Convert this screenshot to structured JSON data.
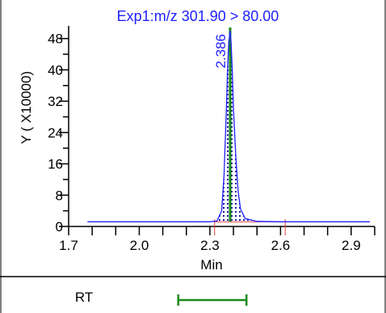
{
  "chart_data": {
    "type": "line",
    "title": "Exp1:m/z 301.90 > 80.00",
    "xlabel": "Min",
    "ylabel": "Y ( X10000)",
    "xlim": [
      1.7,
      3.0
    ],
    "ylim": [
      0,
      50
    ],
    "x_ticks": [
      "1.7",
      "2.0",
      "2.3",
      "2.6",
      "2.9"
    ],
    "y_ticks": [
      "0",
      "8",
      "16",
      "24",
      "32",
      "40",
      "48"
    ],
    "grid": false,
    "legend": "none",
    "series": [
      {
        "color": "#2020ff",
        "x": [
          1.78,
          2.2,
          2.3,
          2.33,
          2.35,
          2.36,
          2.37,
          2.375,
          2.38,
          2.386,
          2.39,
          2.395,
          2.4,
          2.41,
          2.42,
          2.43,
          2.45,
          2.5,
          2.6,
          2.98
        ],
        "y": [
          1.2,
          1.2,
          1.2,
          1.4,
          4,
          13,
          30,
          40,
          47,
          50,
          47,
          40,
          30,
          18,
          9,
          4.5,
          2,
          1.3,
          1.2,
          1.2
        ]
      }
    ],
    "peak": {
      "rt": 2.386,
      "rt_label": "2.386",
      "integration_start": 2.32,
      "integration_end": 2.62,
      "baseline": 1.2,
      "rt_line_color": "#1a8a1a",
      "integration_color": "#e04040",
      "label_color": "#2020ff",
      "fill": "dotted"
    }
  },
  "bottom_panel": {
    "label": "RT",
    "range": [
      2.32,
      2.62
    ],
    "color": "#1a8a1a"
  }
}
